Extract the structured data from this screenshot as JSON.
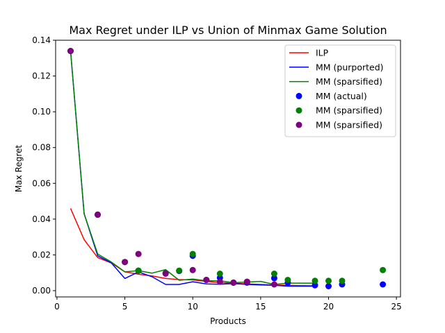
{
  "chart_data": {
    "type": "line",
    "title": "Max Regret under ILP vs Union of Minmax Game Solution",
    "xlabel": "Products",
    "ylabel": "Max Regret",
    "xlim": [
      -0.1,
      25.3
    ],
    "ylim": [
      -0.0035,
      0.14
    ],
    "x_ticks": [
      0,
      5,
      10,
      15,
      20,
      25
    ],
    "x_tick_labels": [
      "0",
      "5",
      "10",
      "15",
      "20",
      "25"
    ],
    "y_ticks": [
      0.0,
      0.02,
      0.04,
      0.06,
      0.08,
      0.1,
      0.12,
      0.14
    ],
    "y_tick_labels": [
      "0.00",
      "0.02",
      "0.04",
      "0.06",
      "0.08",
      "0.10",
      "0.12",
      "0.14"
    ],
    "grid": false,
    "legend_position": "top-right",
    "lines": [
      {
        "name": "ILP",
        "color": "#ff0000",
        "x": [
          1,
          2,
          3,
          4,
          5,
          6,
          7,
          8,
          9,
          10,
          11,
          12,
          13,
          14,
          15,
          16,
          17,
          18,
          19
        ],
        "y": [
          0.046,
          0.0285,
          0.0185,
          0.0155,
          0.0105,
          0.0092,
          0.0082,
          0.0068,
          0.0062,
          0.006,
          0.0052,
          0.0045,
          0.0042,
          0.0038,
          0.0035,
          0.0032,
          0.003,
          0.0028,
          0.0027
        ]
      },
      {
        "name": "MM (purported)",
        "color": "#0000ff",
        "x": [
          1,
          2,
          3,
          4,
          5,
          6,
          7,
          8,
          9,
          10,
          11,
          12,
          13,
          14,
          15,
          16,
          17,
          18,
          19
        ],
        "y": [
          0.134,
          0.043,
          0.0195,
          0.0155,
          0.0068,
          0.0105,
          0.0078,
          0.0035,
          0.0035,
          0.005,
          0.0038,
          0.0036,
          0.004,
          0.0035,
          0.0032,
          0.003,
          0.0025,
          0.0025,
          0.0025
        ]
      },
      {
        "name": "MM (sparsified)",
        "color": "#008000",
        "x": [
          1,
          2,
          3,
          4,
          5,
          6,
          7,
          8,
          9,
          10,
          11,
          12,
          13,
          14,
          15,
          16,
          17,
          18,
          19
        ],
        "y": [
          0.134,
          0.043,
          0.0205,
          0.016,
          0.0105,
          0.0112,
          0.0098,
          0.0118,
          0.0058,
          0.0065,
          0.0055,
          0.0055,
          0.0045,
          0.0048,
          0.0052,
          0.0035,
          0.0042,
          0.0042,
          0.0042
        ]
      }
    ],
    "scatter": [
      {
        "name": "MM (actual)",
        "color": "#0000ff",
        "points": [
          [
            1,
            0.134
          ],
          [
            3,
            0.0425
          ],
          [
            5,
            0.016
          ],
          [
            6,
            0.0112
          ],
          [
            8,
            0.0098
          ],
          [
            9,
            0.011
          ],
          [
            10,
            0.0195
          ],
          [
            11,
            0.006
          ],
          [
            12,
            0.0072
          ],
          [
            13,
            0.0045
          ],
          [
            14,
            0.0045
          ],
          [
            16,
            0.007
          ],
          [
            17,
            0.0045
          ],
          [
            19,
            0.003
          ],
          [
            20,
            0.0025
          ],
          [
            21,
            0.0035
          ],
          [
            24,
            0.0035
          ]
        ]
      },
      {
        "name": "MM (sparsified)",
        "color": "#008000",
        "points": [
          [
            1,
            0.134
          ],
          [
            3,
            0.0425
          ],
          [
            5,
            0.016
          ],
          [
            6,
            0.0112
          ],
          [
            8,
            0.0098
          ],
          [
            9,
            0.0112
          ],
          [
            10,
            0.0205
          ],
          [
            11,
            0.006
          ],
          [
            12,
            0.0095
          ],
          [
            13,
            0.0045
          ],
          [
            14,
            0.005
          ],
          [
            16,
            0.0095
          ],
          [
            17,
            0.006
          ],
          [
            19,
            0.0055
          ],
          [
            20,
            0.0055
          ],
          [
            21,
            0.0055
          ],
          [
            24,
            0.0115
          ]
        ]
      },
      {
        "name": "MM (sparsified)",
        "color": "#800080",
        "points": [
          [
            1,
            0.134
          ],
          [
            3,
            0.0425
          ],
          [
            5,
            0.016
          ],
          [
            6,
            0.0205
          ],
          [
            8,
            0.0095
          ],
          [
            10,
            0.0115
          ],
          [
            11,
            0.006
          ],
          [
            12,
            0.005
          ],
          [
            13,
            0.0045
          ],
          [
            14,
            0.005
          ],
          [
            16,
            0.0035
          ]
        ]
      }
    ],
    "legend": [
      {
        "label": "ILP",
        "kind": "line",
        "color": "#ff0000"
      },
      {
        "label": "MM (purported)",
        "kind": "line",
        "color": "#0000ff"
      },
      {
        "label": "MM (sparsified)",
        "kind": "line",
        "color": "#008000"
      },
      {
        "label": "MM (actual)",
        "kind": "marker",
        "color": "#0000ff"
      },
      {
        "label": "MM (sparsified)",
        "kind": "marker",
        "color": "#008000"
      },
      {
        "label": "MM (sparsified)",
        "kind": "marker",
        "color": "#800080"
      }
    ]
  }
}
